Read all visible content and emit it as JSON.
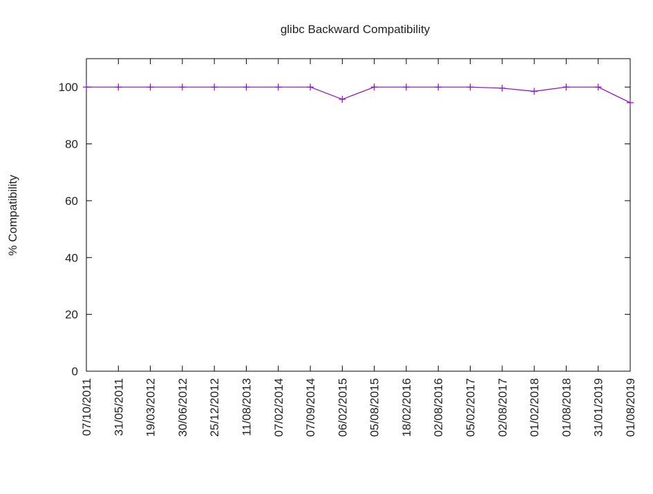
{
  "chart_data": {
    "type": "line",
    "title": "glibc Backward Compatibility",
    "xlabel": "",
    "ylabel": "% Compatibility",
    "ylim": [
      0,
      110
    ],
    "yticks": [
      0,
      20,
      40,
      60,
      80,
      100
    ],
    "grid": false,
    "categories": [
      "07/10/2011",
      "31/05/2011",
      "19/03/2012",
      "30/06/2012",
      "25/12/2012",
      "11/08/2013",
      "07/02/2014",
      "07/09/2014",
      "06/02/2015",
      "05/08/2015",
      "18/02/2016",
      "02/08/2016",
      "05/02/2017",
      "02/08/2017",
      "01/02/2018",
      "01/08/2018",
      "31/01/2019",
      "01/08/2019"
    ],
    "series": [
      {
        "values": [
          100,
          100,
          100,
          100,
          100,
          100,
          100,
          100,
          95.7,
          100,
          100,
          100,
          100,
          99.6,
          98.5,
          100,
          100,
          94.5
        ],
        "color": "#9400d3"
      }
    ]
  }
}
